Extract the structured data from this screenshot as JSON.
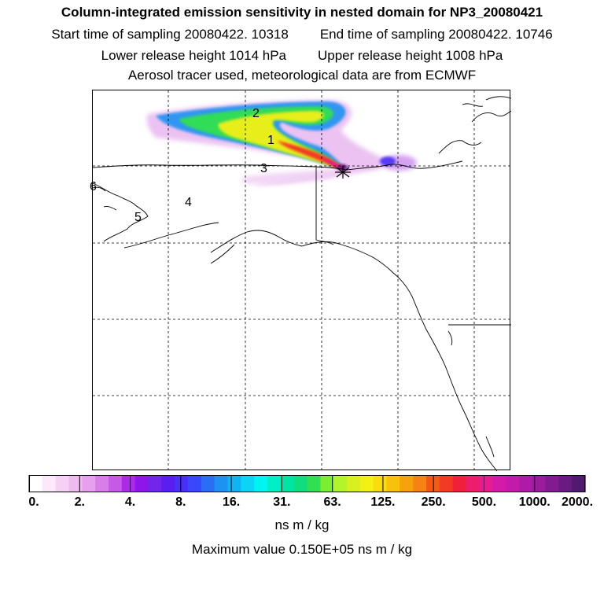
{
  "header": {
    "title": "Column-integrated emission sensitivity in nested domain for NP3_20080421",
    "start_time": "Start time of sampling 20080422. 10318",
    "end_time": "End time of sampling 20080422. 10746",
    "lower_release": "Lower release height 1014 hPa",
    "upper_release": "Upper release height 1008 hPa",
    "info": "Aerosol tracer used, meteorological data are from ECMWF"
  },
  "map": {
    "markers": [
      "1",
      "2",
      "3",
      "4",
      "5",
      "6"
    ]
  },
  "colorbar": {
    "tick_labels": [
      "0.",
      "2.",
      "4.",
      "8.",
      "16.",
      "31.",
      "63.",
      "125.",
      "250.",
      "500.",
      "1000.",
      "2000."
    ],
    "colors": [
      "#ffffff",
      "#fbe9fb",
      "#f5d2f5",
      "#eebbf0",
      "#e6a0ee",
      "#d97ee8",
      "#c65ae6",
      "#aa2be8",
      "#8e16ea",
      "#7226ec",
      "#5a1ef0",
      "#4a30f6",
      "#3848fa",
      "#2a6ef4",
      "#1c92f2",
      "#10b4f4",
      "#0cd4f4",
      "#00f5f0",
      "#00eec8",
      "#00e5a5",
      "#10dd80",
      "#30e050",
      "#7aee30",
      "#b4f42a",
      "#d8f020",
      "#f2f014",
      "#fadc0c",
      "#f8c20c",
      "#f6a20c",
      "#f68214",
      "#f25a14",
      "#f23a24",
      "#f0203c",
      "#ee1c6c",
      "#e61c92",
      "#d61aa8",
      "#c41aac",
      "#b01aa8",
      "#9a1aa0",
      "#821a90",
      "#6a1a80",
      "#521a6e"
    ],
    "units": "ns m / kg",
    "max_value": "Maximum value  0.150E+05 ns m / kg"
  }
}
